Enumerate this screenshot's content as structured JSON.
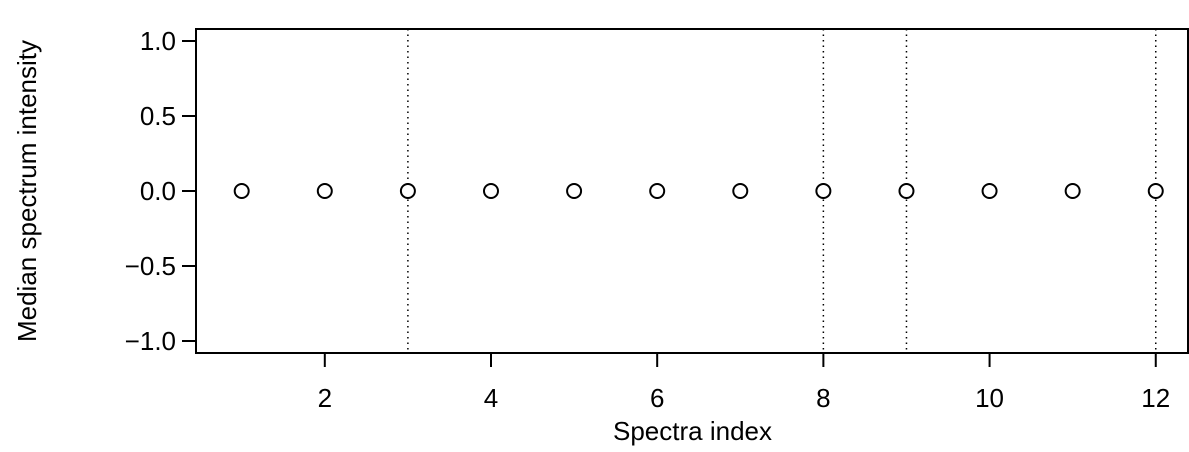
{
  "chart_data": {
    "type": "scatter",
    "xlabel": "Spectra index",
    "ylabel": "Median spectrum intensity",
    "x": [
      1,
      2,
      3,
      4,
      5,
      6,
      7,
      8,
      9,
      10,
      11,
      12
    ],
    "y": [
      0,
      0,
      0,
      0,
      0,
      0,
      0,
      0,
      0,
      0,
      0,
      0
    ],
    "xlim": [
      0.45,
      12.4
    ],
    "ylim": [
      -1.08,
      1.08
    ],
    "x_ticks": [
      2,
      4,
      6,
      8,
      10,
      12
    ],
    "x_tick_labels": [
      "2",
      "4",
      "6",
      "8",
      "10",
      "12"
    ],
    "y_ticks": [
      1.0,
      0.5,
      0.0,
      -0.5,
      -1.0
    ],
    "y_tick_labels": [
      "1.0",
      "0.5",
      "0.0",
      "−0.5",
      "−1.0"
    ],
    "vlines": [
      3,
      8,
      9,
      12
    ],
    "marker": "open-circle",
    "grid": false,
    "legend": "none"
  }
}
